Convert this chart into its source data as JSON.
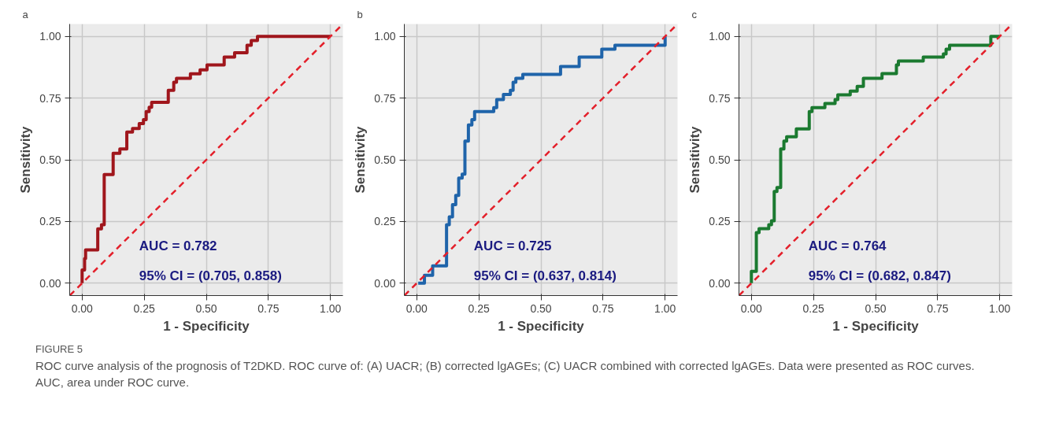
{
  "chart_data": [
    {
      "type": "line",
      "title": "a",
      "xlabel": "1 - Specificity",
      "ylabel": "Sensitivity",
      "xlim": [
        -0.05,
        1.05
      ],
      "ylim": [
        -0.05,
        1.05
      ],
      "xticks": [
        {
          "value": 0,
          "label": "0.00"
        },
        {
          "value": 0.25,
          "label": "0.25"
        },
        {
          "value": 0.5,
          "label": "0.50"
        },
        {
          "value": 0.75,
          "label": "0.75"
        },
        {
          "value": 1,
          "label": "1.00"
        }
      ],
      "yticks": [
        {
          "value": 0,
          "label": "0.00"
        },
        {
          "value": 0.25,
          "label": "0.25"
        },
        {
          "value": 0.5,
          "label": "0.50"
        },
        {
          "value": 0.75,
          "label": "0.75"
        },
        {
          "value": 1,
          "label": "1.00"
        }
      ],
      "grid": true,
      "marker": "none",
      "series": [
        {
          "color": "#a0161c",
          "line_style": "solid",
          "x": [
            0,
            0,
            0.01,
            0.01,
            0.014,
            0.014,
            0.063,
            0.063,
            0.078,
            0.078,
            0.089,
            0.089,
            0.125,
            0.125,
            0.152,
            0.152,
            0.18,
            0.18,
            0.203,
            0.203,
            0.23,
            0.23,
            0.247,
            0.247,
            0.258,
            0.258,
            0.27,
            0.27,
            0.28,
            0.28,
            0.347,
            0.347,
            0.369,
            0.369,
            0.38,
            0.38,
            0.436,
            0.436,
            0.475,
            0.475,
            0.503,
            0.503,
            0.572,
            0.572,
            0.614,
            0.614,
            0.664,
            0.664,
            0.681,
            0.681,
            0.706,
            0.706,
            1.0
          ],
          "values": [
            0,
            0.054,
            0.054,
            0.1,
            0.1,
            0.135,
            0.135,
            0.22,
            0.22,
            0.237,
            0.237,
            0.44,
            0.44,
            0.526,
            0.526,
            0.544,
            0.544,
            0.612,
            0.612,
            0.627,
            0.627,
            0.647,
            0.647,
            0.663,
            0.663,
            0.695,
            0.695,
            0.713,
            0.713,
            0.733,
            0.733,
            0.781,
            0.781,
            0.814,
            0.814,
            0.83,
            0.83,
            0.848,
            0.848,
            0.864,
            0.864,
            0.884,
            0.884,
            0.916,
            0.916,
            0.934,
            0.934,
            0.964,
            0.964,
            0.983,
            0.983,
            1.0,
            1.0
          ]
        },
        {
          "color": "#e3202b",
          "line_style": "dashed",
          "x": [
            -0.05,
            1.05
          ],
          "values": [
            -0.05,
            1.05
          ]
        }
      ],
      "annotations": [
        "AUC = 0.782",
        "95% CI = (0.705, 0.858)"
      ]
    },
    {
      "type": "line",
      "title": "b",
      "xlabel": "1 - Specificity",
      "ylabel": "Sensitivity",
      "xlim": [
        -0.05,
        1.05
      ],
      "ylim": [
        -0.05,
        1.05
      ],
      "xticks": [
        {
          "value": 0,
          "label": "0.00"
        },
        {
          "value": 0.25,
          "label": "0.25"
        },
        {
          "value": 0.5,
          "label": "0.50"
        },
        {
          "value": 0.75,
          "label": "0.75"
        },
        {
          "value": 1,
          "label": "1.00"
        }
      ],
      "yticks": [
        {
          "value": 0,
          "label": "0.00"
        },
        {
          "value": 0.25,
          "label": "0.25"
        },
        {
          "value": 0.5,
          "label": "0.50"
        },
        {
          "value": 0.75,
          "label": "0.75"
        },
        {
          "value": 1,
          "label": "1.00"
        }
      ],
      "grid": true,
      "marker": "none",
      "series": [
        {
          "color": "#1f64aa",
          "line_style": "solid",
          "x": [
            0.006,
            0.031,
            0.031,
            0.064,
            0.064,
            0.12,
            0.12,
            0.131,
            0.131,
            0.144,
            0.144,
            0.157,
            0.157,
            0.169,
            0.169,
            0.183,
            0.183,
            0.194,
            0.194,
            0.208,
            0.208,
            0.222,
            0.222,
            0.233,
            0.233,
            0.31,
            0.31,
            0.322,
            0.322,
            0.349,
            0.349,
            0.377,
            0.377,
            0.388,
            0.388,
            0.399,
            0.399,
            0.427,
            0.427,
            0.579,
            0.579,
            0.654,
            0.654,
            0.745,
            0.745,
            0.798,
            0.798,
            1.0,
            1.0
          ],
          "values": [
            0,
            0,
            0.032,
            0.032,
            0.07,
            0.07,
            0.237,
            0.237,
            0.269,
            0.269,
            0.318,
            0.318,
            0.356,
            0.356,
            0.426,
            0.426,
            0.442,
            0.442,
            0.576,
            0.576,
            0.641,
            0.641,
            0.663,
            0.663,
            0.695,
            0.695,
            0.711,
            0.711,
            0.744,
            0.744,
            0.765,
            0.765,
            0.781,
            0.781,
            0.814,
            0.814,
            0.83,
            0.83,
            0.846,
            0.846,
            0.878,
            0.878,
            0.916,
            0.916,
            0.948,
            0.948,
            0.964,
            0.964,
            1.0
          ]
        },
        {
          "color": "#e3202b",
          "line_style": "dashed",
          "x": [
            -0.05,
            1.05
          ],
          "values": [
            -0.05,
            1.05
          ]
        }
      ],
      "annotations": [
        "AUC = 0.725",
        "95% CI = (0.637, 0.814)"
      ]
    },
    {
      "type": "line",
      "title": "c",
      "xlabel": "1 - Specificity",
      "ylabel": "Sensitivity",
      "xlim": [
        -0.05,
        1.05
      ],
      "ylim": [
        -0.05,
        1.05
      ],
      "xticks": [
        {
          "value": 0,
          "label": "0.00"
        },
        {
          "value": 0.25,
          "label": "0.25"
        },
        {
          "value": 0.5,
          "label": "0.50"
        },
        {
          "value": 0.75,
          "label": "0.75"
        },
        {
          "value": 1,
          "label": "1.00"
        }
      ],
      "yticks": [
        {
          "value": 0,
          "label": "0.00"
        },
        {
          "value": 0.25,
          "label": "0.25"
        },
        {
          "value": 0.5,
          "label": "0.50"
        },
        {
          "value": 0.75,
          "label": "0.75"
        },
        {
          "value": 1,
          "label": "1.00"
        }
      ],
      "grid": true,
      "marker": "none",
      "series": [
        {
          "color": "#1b7a30",
          "line_style": "solid",
          "x": [
            0,
            0,
            0.02,
            0.02,
            0.031,
            0.031,
            0.07,
            0.07,
            0.081,
            0.081,
            0.092,
            0.092,
            0.103,
            0.103,
            0.118,
            0.118,
            0.131,
            0.131,
            0.142,
            0.142,
            0.181,
            0.181,
            0.233,
            0.233,
            0.244,
            0.244,
            0.296,
            0.296,
            0.337,
            0.337,
            0.348,
            0.348,
            0.398,
            0.398,
            0.426,
            0.426,
            0.451,
            0.451,
            0.526,
            0.526,
            0.584,
            0.584,
            0.592,
            0.592,
            0.692,
            0.692,
            0.773,
            0.773,
            0.784,
            0.784,
            0.798,
            0.798,
            0.964,
            0.964,
            1.0
          ],
          "values": [
            0,
            0.048,
            0.048,
            0.205,
            0.205,
            0.221,
            0.221,
            0.237,
            0.237,
            0.253,
            0.253,
            0.372,
            0.372,
            0.388,
            0.388,
            0.544,
            0.544,
            0.576,
            0.576,
            0.593,
            0.593,
            0.625,
            0.625,
            0.695,
            0.695,
            0.711,
            0.711,
            0.728,
            0.728,
            0.744,
            0.744,
            0.763,
            0.763,
            0.778,
            0.778,
            0.797,
            0.797,
            0.83,
            0.83,
            0.849,
            0.849,
            0.884,
            0.884,
            0.9,
            0.9,
            0.916,
            0.916,
            0.929,
            0.929,
            0.948,
            0.948,
            0.964,
            0.964,
            1.0,
            1.0
          ]
        },
        {
          "color": "#e3202b",
          "line_style": "dashed",
          "x": [
            -0.05,
            1.05
          ],
          "values": [
            -0.05,
            1.05
          ]
        }
      ],
      "annotations": [
        "AUC = 0.764",
        "95% CI = (0.682, 0.847)"
      ]
    },
    {
      "type": "other",
      "title": "FIGURE 5",
      "annotations": [
        "ROC curve analysis of the prognosis of T2DKD. ROC curve of: (A) UACR; (B) corrected lgAGEs; (C) UACR combined with corrected lgAGEs. Data were presented as ROC curves. AUC, area under ROC curve."
      ]
    }
  ]
}
